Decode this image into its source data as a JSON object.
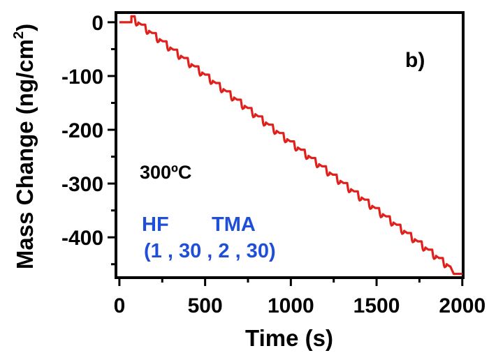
{
  "chart_data": {
    "type": "line",
    "title": "",
    "panel_label": "b)",
    "xlabel": "Time (s)",
    "ylabel": "Mass Change (ng/cm",
    "ylabel_superscript": "2",
    "ylabel_close": ")",
    "xlim": [
      -20,
      2005
    ],
    "ylim": [
      -475,
      18
    ],
    "xticks": [
      0,
      500,
      1000,
      1500,
      2000
    ],
    "xtick_labels": [
      "0",
      "500",
      "1000",
      "1500",
      "2000"
    ],
    "yticks": [
      0,
      -100,
      -200,
      -300,
      -400
    ],
    "ytick_labels": [
      "0",
      "-100",
      "-200",
      "-300",
      "-400"
    ],
    "grid": false,
    "series": [
      {
        "color": "#e0201b",
        "segments": {
          "baseline": [
            [
              0,
              0
            ],
            [
              70,
              0
            ]
          ],
          "cycle_start_time": 70,
          "cycle_period": 62,
          "cycle_count": 30,
          "start_mass": 11,
          "mass_change_per_cycle": -15.5,
          "step_up": 4,
          "final_time": 2000,
          "final_mass": -468
        }
      }
    ],
    "annotations": [
      {
        "text": "300ºC",
        "color": "#000000"
      },
      {
        "text": "HF",
        "color": "#1f4fd8"
      },
      {
        "text": "TMA",
        "color": "#1f4fd8"
      },
      {
        "text": "(1 , 30 , 2 , 30)",
        "color": "#1f4fd8"
      }
    ]
  }
}
